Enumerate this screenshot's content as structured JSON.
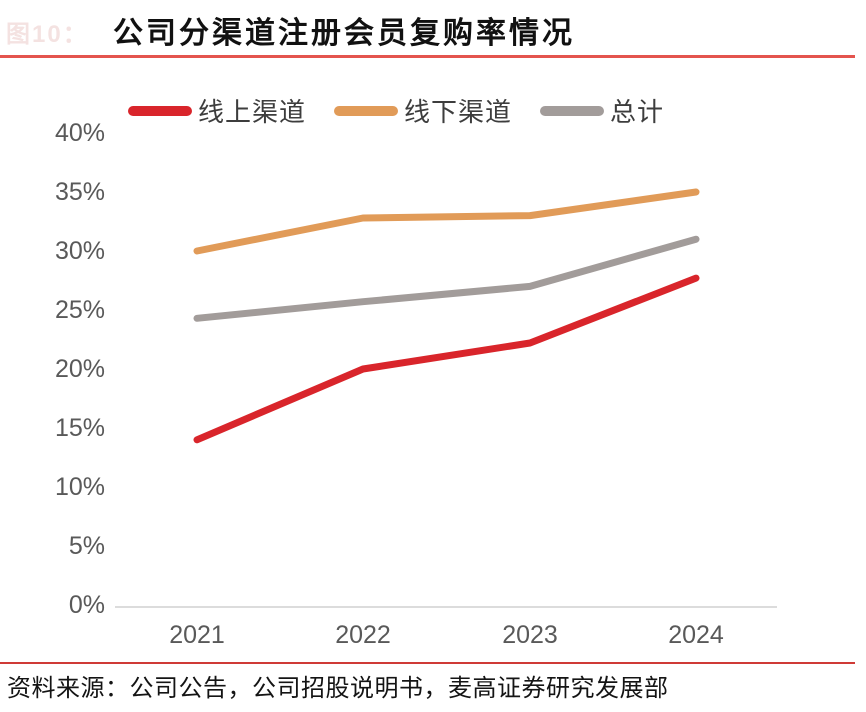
{
  "figure_label": "图10：",
  "title": "公司分渠道注册会员复购率情况",
  "footer": {
    "source": "资料来源：公司公告，公司招股说明书，麦高证券研究发展部"
  },
  "colors": {
    "online": "#d9252b",
    "offline": "#e19b58",
    "total": "#a29c9a",
    "title_rule": "#e4544e",
    "footer_rule": "#cf3a36",
    "axis_label": "#595959",
    "axis_line": "#dcdcdc"
  },
  "chart_data": {
    "type": "line",
    "title": "公司分渠道注册会员复购率情况",
    "categories": [
      "2021",
      "2022",
      "2023",
      "2024"
    ],
    "series": [
      {
        "name": "线上渠道",
        "color": "#d9252b",
        "values": [
          14.0,
          20.0,
          22.2,
          27.7
        ]
      },
      {
        "name": "线下渠道",
        "color": "#e19b58",
        "values": [
          30.0,
          32.8,
          33.0,
          35.0
        ]
      },
      {
        "name": "总计",
        "color": "#a29c9a",
        "values": [
          24.3,
          25.7,
          27.0,
          31.0
        ]
      }
    ],
    "ylim": [
      0,
      40
    ],
    "ytick_step": 5,
    "yticks": [
      "40%",
      "35%",
      "30%",
      "25%",
      "20%",
      "15%",
      "10%",
      "5%",
      "0%"
    ],
    "xlabel": "",
    "ylabel": "",
    "grid": false,
    "legend_position": "top"
  }
}
